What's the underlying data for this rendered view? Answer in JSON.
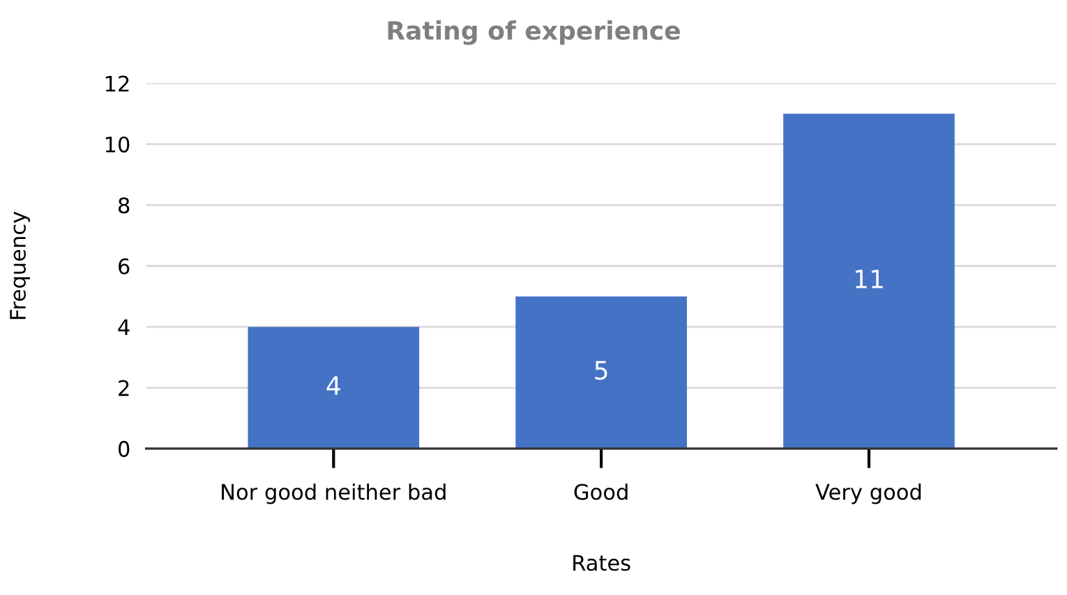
{
  "chart_data": {
    "type": "bar",
    "title": "Rating of experience",
    "xlabel": "Rates",
    "ylabel": "Frequency",
    "categories": [
      "Nor good neither bad",
      "Good",
      "Very good"
    ],
    "values": [
      4,
      5,
      11
    ],
    "color": "#4472c4",
    "ylim": [
      0,
      12
    ],
    "yticks": [
      0,
      2,
      4,
      6,
      8,
      10,
      12
    ],
    "grid": "y",
    "data_labels": true,
    "legend": false
  }
}
